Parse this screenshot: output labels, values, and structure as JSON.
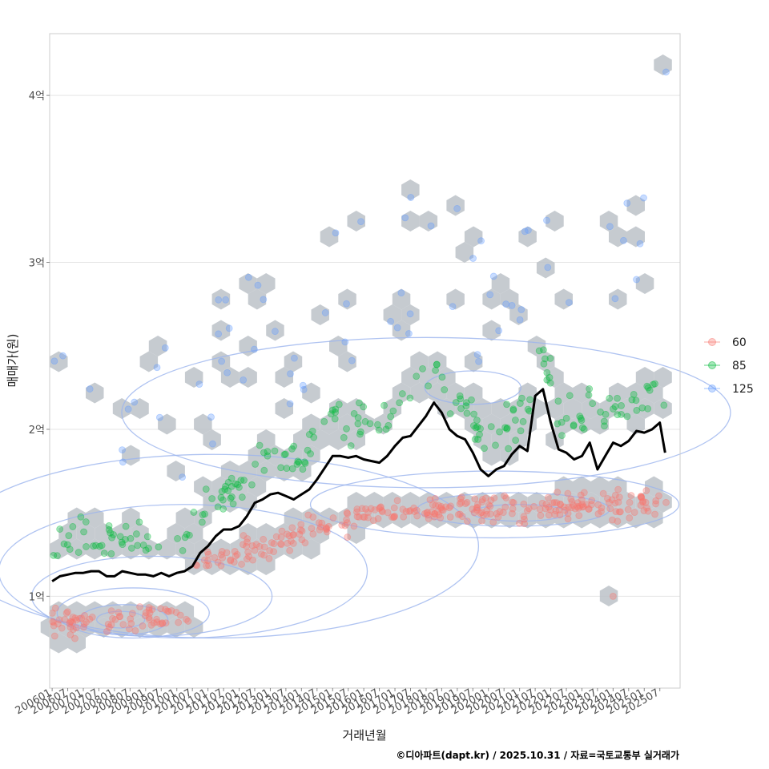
{
  "chart_data": {
    "type": "scatter",
    "xlabel": "거래년월",
    "ylabel": "매매가(원)",
    "caption": "©디아파트(dapt.kr) / 2025.10.31 / 자료=국토교통부 실거래가",
    "x_range": [
      2006.0,
      2025.75
    ],
    "ylim": [
      0.45,
      4.37
    ],
    "y_unit": "억",
    "y_ticks": [
      {
        "value": 1,
        "label": "1억"
      },
      {
        "value": 2,
        "label": "2억"
      },
      {
        "value": 3,
        "label": "3억"
      },
      {
        "value": 4,
        "label": "4억"
      }
    ],
    "x_ticks": [
      "200601",
      "200607",
      "200701",
      "200707",
      "200801",
      "200807",
      "200901",
      "200907",
      "201001",
      "201007",
      "201101",
      "201107",
      "201201",
      "201207",
      "201301",
      "201307",
      "201401",
      "201407",
      "201501",
      "201507",
      "201601",
      "201607",
      "201701",
      "201707",
      "201801",
      "201807",
      "201901",
      "201907",
      "202001",
      "202007",
      "202101",
      "202107",
      "202201",
      "202207",
      "202301",
      "202307",
      "202401",
      "202407",
      "202501",
      "202507"
    ],
    "legend": {
      "position": "right",
      "items": [
        {
          "label": "60",
          "color": "#F8766D"
        },
        {
          "label": "85",
          "color": "#00BA38"
        },
        {
          "label": "125",
          "color": "#619CFF"
        }
      ]
    },
    "hexbin_color": "#bcc2c8",
    "contour_color": "#9bb4ee",
    "trend_series": {
      "name": "median",
      "color": "#000000",
      "x": [
        2006.0,
        2006.25,
        2006.5,
        2006.75,
        2007.0,
        2007.25,
        2007.5,
        2007.75,
        2008.0,
        2008.25,
        2008.5,
        2008.75,
        2009.0,
        2009.25,
        2009.5,
        2009.75,
        2010.0,
        2010.25,
        2010.5,
        2010.75,
        2011.0,
        2011.25,
        2011.5,
        2011.75,
        2012.0,
        2012.25,
        2012.5,
        2012.75,
        2013.0,
        2013.25,
        2013.5,
        2013.75,
        2014.0,
        2014.25,
        2014.5,
        2014.75,
        2015.0,
        2015.25,
        2015.5,
        2015.75,
        2016.0,
        2016.25,
        2016.5,
        2016.75,
        2017.0,
        2017.25,
        2017.5,
        2017.75,
        2018.0,
        2018.25,
        2018.5,
        2018.75,
        2019.0,
        2019.25,
        2019.5,
        2019.75,
        2020.0,
        2020.25,
        2020.5,
        2020.75,
        2021.0,
        2021.25,
        2021.5,
        2021.75,
        2022.0,
        2022.25,
        2022.5,
        2022.75,
        2023.0,
        2023.25,
        2023.5,
        2023.75,
        2024.0,
        2024.25,
        2024.5,
        2024.75,
        2025.0,
        2025.25,
        2025.5,
        2025.67
      ],
      "values": [
        1.09,
        1.12,
        1.13,
        1.14,
        1.14,
        1.15,
        1.15,
        1.12,
        1.12,
        1.15,
        1.14,
        1.13,
        1.13,
        1.12,
        1.14,
        1.12,
        1.14,
        1.15,
        1.18,
        1.26,
        1.3,
        1.36,
        1.4,
        1.4,
        1.42,
        1.48,
        1.56,
        1.58,
        1.61,
        1.62,
        1.6,
        1.58,
        1.61,
        1.64,
        1.7,
        1.77,
        1.84,
        1.84,
        1.83,
        1.84,
        1.82,
        1.81,
        1.8,
        1.84,
        1.9,
        1.95,
        1.96,
        2.02,
        2.08,
        2.16,
        2.1,
        2.0,
        1.96,
        1.94,
        1.86,
        1.76,
        1.72,
        1.76,
        1.78,
        1.85,
        1.9,
        1.87,
        2.2,
        2.24,
        2.04,
        1.88,
        1.86,
        1.82,
        1.84,
        1.92,
        1.76,
        1.84,
        1.92,
        1.9,
        1.93,
        1.99,
        1.98,
        2.0,
        2.04,
        1.86
      ]
    }
  }
}
